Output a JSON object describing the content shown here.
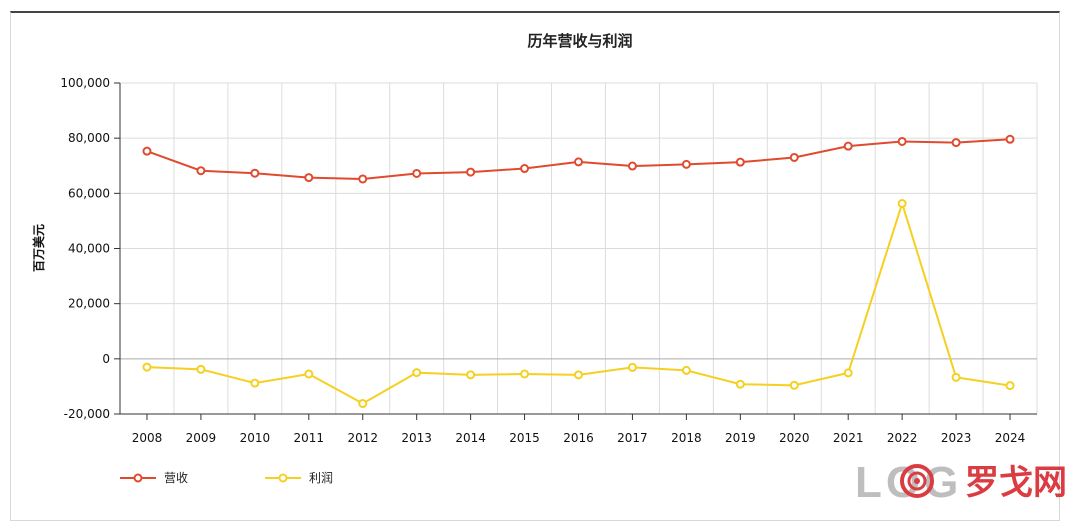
{
  "chart_data": {
    "type": "line",
    "title": "历年营收与利润",
    "ylabel": "百万美元",
    "xlabel": "",
    "ylim": [
      -20000,
      100000
    ],
    "yticks": [
      -20000,
      0,
      20000,
      40000,
      60000,
      80000,
      100000
    ],
    "ytick_labels": [
      "-20,000",
      "0",
      "20,000",
      "40,000",
      "60,000",
      "80,000",
      "100,000"
    ],
    "grid": true,
    "legend_position": "bottom-left",
    "categories": [
      "2008",
      "2009",
      "2010",
      "2011",
      "2012",
      "2013",
      "2014",
      "2015",
      "2016",
      "2017",
      "2018",
      "2019",
      "2020",
      "2021",
      "2022",
      "2023",
      "2024"
    ],
    "series": [
      {
        "name": "营收",
        "color": "#e04a2f",
        "values": [
          75300,
          68200,
          67300,
          65700,
          65200,
          67200,
          67700,
          69000,
          71400,
          69900,
          70500,
          71300,
          73000,
          77100,
          78800,
          78400,
          79600
        ]
      },
      {
        "name": "利润",
        "color": "#f5d020",
        "values": [
          -3000,
          -3800,
          -8800,
          -5500,
          -16200,
          -5000,
          -5800,
          -5500,
          -5800,
          -3100,
          -4200,
          -9200,
          -9600,
          -5100,
          56300,
          -6700,
          -9700
        ]
      }
    ]
  },
  "watermark": {
    "text_cn": "罗戈网",
    "logo_text": "LOG"
  }
}
